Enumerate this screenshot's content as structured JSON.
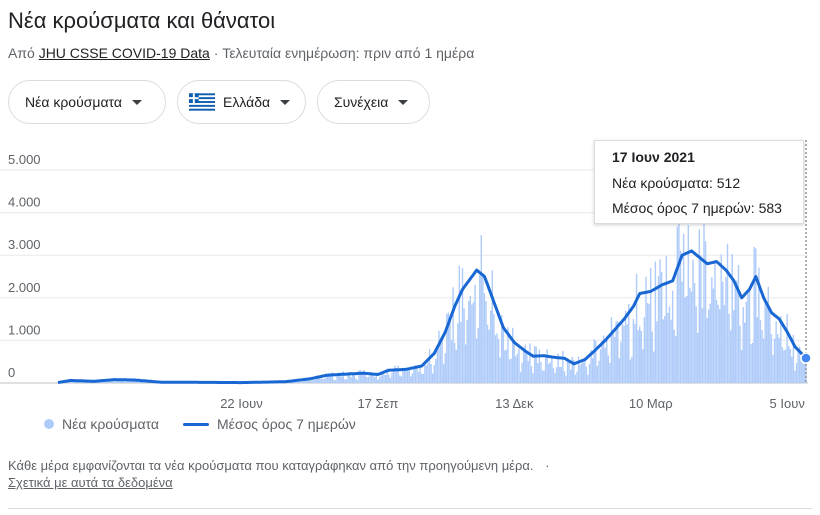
{
  "header": {
    "title": "Νέα κρούσματα και θάνατοι",
    "source_prefix": "Από",
    "source_link": "JHU CSSE COVID-19 Data",
    "source_suffix": "· Τελευταία ενημέρωση: πριν από 1 ημέρα"
  },
  "filters": {
    "metric": "Νέα κρούσματα",
    "country": "Ελλάδα",
    "range": "Συνέχεια"
  },
  "colors": {
    "bars": "#aecbfa",
    "line": "#1967d2",
    "grid": "#e8eaed",
    "flag_blue": "#0d5eaf"
  },
  "tooltip": {
    "date": "17 Ιουν 2021",
    "cases": "Νέα κρούσματα: 512",
    "avg": "Μέσος όρος 7 ημερών: 583"
  },
  "legend": {
    "bars_label": "Νέα κρούσματα",
    "line_label": "Μέσος όρος 7 ημερών"
  },
  "footer": {
    "note": "Κάθε μέρα εμφανίζονται τα νέα κρούσματα που καταγράφηκαν από την προηγούμενη μέρα.",
    "dot": "·",
    "about": "Σχετικά με αυτά τα δεδομένα"
  },
  "chart_data": {
    "type": "bar",
    "start_date": "2020-02-26",
    "end_date": "2021-06-17",
    "ylim": [
      0,
      5000
    ],
    "grid": true,
    "y_ticks": [
      {
        "value": 0,
        "label": "0"
      },
      {
        "value": 1000,
        "label": "1.000"
      },
      {
        "value": 2000,
        "label": "2.000"
      },
      {
        "value": 3000,
        "label": "3.000"
      },
      {
        "value": 4000,
        "label": "4.000"
      },
      {
        "value": 5000,
        "label": "5.000"
      }
    ],
    "x_ticks": [
      {
        "date": "2020-06-22",
        "label": "22 Ιουν"
      },
      {
        "date": "2020-09-17",
        "label": "17 Σεπ"
      },
      {
        "date": "2020-12-13",
        "label": "13 Δεκ"
      },
      {
        "date": "2021-03-10",
        "label": "10 Μαρ"
      },
      {
        "date": "2021-06-05",
        "label": "5 Ιουν"
      }
    ],
    "series": [
      {
        "name": "Μέσος όρος 7 ημερών",
        "type": "line",
        "points": [
          {
            "date": "2020-02-26",
            "value": 10
          },
          {
            "date": "2020-03-05",
            "value": 60
          },
          {
            "date": "2020-03-20",
            "value": 40
          },
          {
            "date": "2020-04-02",
            "value": 80
          },
          {
            "date": "2020-04-15",
            "value": 70
          },
          {
            "date": "2020-05-01",
            "value": 20
          },
          {
            "date": "2020-06-22",
            "value": 10
          },
          {
            "date": "2020-07-20",
            "value": 30
          },
          {
            "date": "2020-08-05",
            "value": 100
          },
          {
            "date": "2020-08-15",
            "value": 180
          },
          {
            "date": "2020-08-28",
            "value": 210
          },
          {
            "date": "2020-09-08",
            "value": 230
          },
          {
            "date": "2020-09-17",
            "value": 200
          },
          {
            "date": "2020-09-24",
            "value": 300
          },
          {
            "date": "2020-10-05",
            "value": 320
          },
          {
            "date": "2020-10-15",
            "value": 400
          },
          {
            "date": "2020-10-23",
            "value": 700
          },
          {
            "date": "2020-10-30",
            "value": 1200
          },
          {
            "date": "2020-11-05",
            "value": 1800
          },
          {
            "date": "2020-11-10",
            "value": 2200
          },
          {
            "date": "2020-11-16",
            "value": 2500
          },
          {
            "date": "2020-11-19",
            "value": 2650
          },
          {
            "date": "2020-11-24",
            "value": 2500
          },
          {
            "date": "2020-12-01",
            "value": 1800
          },
          {
            "date": "2020-12-06",
            "value": 1300
          },
          {
            "date": "2020-12-13",
            "value": 950
          },
          {
            "date": "2020-12-20",
            "value": 750
          },
          {
            "date": "2020-12-25",
            "value": 630
          },
          {
            "date": "2021-01-01",
            "value": 640
          },
          {
            "date": "2021-01-08",
            "value": 600
          },
          {
            "date": "2021-01-14",
            "value": 580
          },
          {
            "date": "2021-01-20",
            "value": 450
          },
          {
            "date": "2021-01-27",
            "value": 550
          },
          {
            "date": "2021-02-02",
            "value": 750
          },
          {
            "date": "2021-02-09",
            "value": 1000
          },
          {
            "date": "2021-02-15",
            "value": 1250
          },
          {
            "date": "2021-02-21",
            "value": 1500
          },
          {
            "date": "2021-02-27",
            "value": 1800
          },
          {
            "date": "2021-03-03",
            "value": 2100
          },
          {
            "date": "2021-03-10",
            "value": 2150
          },
          {
            "date": "2021-03-17",
            "value": 2300
          },
          {
            "date": "2021-03-24",
            "value": 2400
          },
          {
            "date": "2021-03-30",
            "value": 3000
          },
          {
            "date": "2021-04-05",
            "value": 3100
          },
          {
            "date": "2021-04-10",
            "value": 2950
          },
          {
            "date": "2021-04-15",
            "value": 2800
          },
          {
            "date": "2021-04-21",
            "value": 2850
          },
          {
            "date": "2021-04-27",
            "value": 2650
          },
          {
            "date": "2021-05-02",
            "value": 2400
          },
          {
            "date": "2021-05-07",
            "value": 2000
          },
          {
            "date": "2021-05-12",
            "value": 2200
          },
          {
            "date": "2021-05-16",
            "value": 2500
          },
          {
            "date": "2021-05-21",
            "value": 2000
          },
          {
            "date": "2021-05-26",
            "value": 1650
          },
          {
            "date": "2021-05-31",
            "value": 1500
          },
          {
            "date": "2021-06-05",
            "value": 1200
          },
          {
            "date": "2021-06-10",
            "value": 850
          },
          {
            "date": "2021-06-14",
            "value": 700
          },
          {
            "date": "2021-06-17",
            "value": 583
          }
        ]
      },
      {
        "name": "Νέα κρούσματα",
        "type": "bar",
        "daily_from_average": true,
        "highlight": {
          "date": "2021-06-17",
          "value": 512
        }
      }
    ]
  }
}
